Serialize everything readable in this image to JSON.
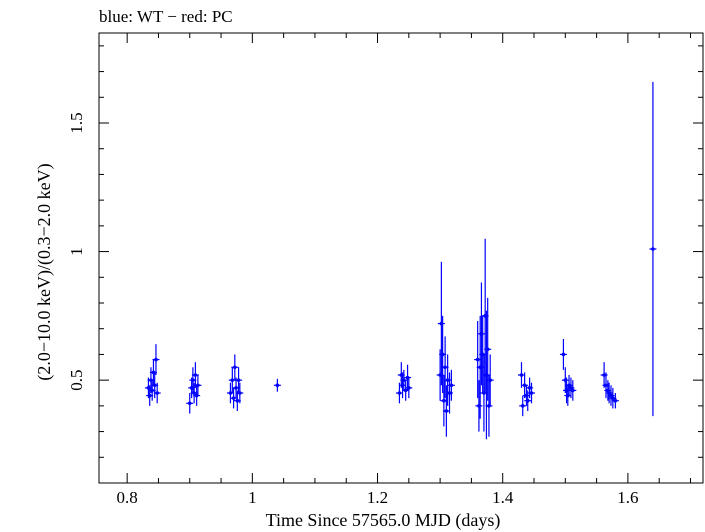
{
  "chart_data": {
    "type": "scatter",
    "title": "blue: WT − red: PC",
    "xlabel": "Time Since 57565.0 MJD (days)",
    "ylabel": "(2.0−10.0 keV)/(0.3−2.0 keV)",
    "xlim": [
      0.755,
      1.72
    ],
    "ylim": [
      0.1,
      1.85
    ],
    "x_ticks": [
      0.8,
      1,
      1.2,
      1.4,
      1.6
    ],
    "x_tick_labels": [
      "0.8",
      "1",
      "1.2",
      "1.4",
      "1.6"
    ],
    "y_ticks": [
      0.5,
      1,
      1.5
    ],
    "y_tick_labels": [
      "0.5",
      "1",
      "1.5"
    ],
    "grid": false,
    "colors": {
      "WT": "#0000ff",
      "PC": "#ff0000"
    },
    "series": [
      {
        "name": "WT",
        "points": [
          {
            "x": 0.834,
            "y": 0.47,
            "err": 0.04
          },
          {
            "x": 0.836,
            "y": 0.44,
            "err": 0.04
          },
          {
            "x": 0.838,
            "y": 0.5,
            "err": 0.05
          },
          {
            "x": 0.84,
            "y": 0.46,
            "err": 0.04
          },
          {
            "x": 0.842,
            "y": 0.53,
            "err": 0.05
          },
          {
            "x": 0.844,
            "y": 0.48,
            "err": 0.05
          },
          {
            "x": 0.846,
            "y": 0.58,
            "err": 0.06
          },
          {
            "x": 0.848,
            "y": 0.45,
            "err": 0.04
          },
          {
            "x": 0.9,
            "y": 0.41,
            "err": 0.04
          },
          {
            "x": 0.903,
            "y": 0.47,
            "err": 0.04
          },
          {
            "x": 0.905,
            "y": 0.5,
            "err": 0.05
          },
          {
            "x": 0.907,
            "y": 0.45,
            "err": 0.04
          },
          {
            "x": 0.909,
            "y": 0.52,
            "err": 0.05
          },
          {
            "x": 0.911,
            "y": 0.44,
            "err": 0.04
          },
          {
            "x": 0.913,
            "y": 0.48,
            "err": 0.04
          },
          {
            "x": 0.965,
            "y": 0.45,
            "err": 0.04
          },
          {
            "x": 0.968,
            "y": 0.5,
            "err": 0.05
          },
          {
            "x": 0.97,
            "y": 0.43,
            "err": 0.04
          },
          {
            "x": 0.972,
            "y": 0.55,
            "err": 0.05
          },
          {
            "x": 0.974,
            "y": 0.47,
            "err": 0.04
          },
          {
            "x": 0.976,
            "y": 0.42,
            "err": 0.04
          },
          {
            "x": 0.978,
            "y": 0.5,
            "err": 0.05
          },
          {
            "x": 0.98,
            "y": 0.45,
            "err": 0.04
          },
          {
            "x": 1.04,
            "y": 0.48,
            "err": 0.025
          },
          {
            "x": 1.235,
            "y": 0.45,
            "err": 0.04
          },
          {
            "x": 1.238,
            "y": 0.52,
            "err": 0.05
          },
          {
            "x": 1.24,
            "y": 0.48,
            "err": 0.05
          },
          {
            "x": 1.242,
            "y": 0.5,
            "err": 0.04
          },
          {
            "x": 1.245,
            "y": 0.46,
            "err": 0.04
          },
          {
            "x": 1.248,
            "y": 0.51,
            "err": 0.05
          },
          {
            "x": 1.25,
            "y": 0.47,
            "err": 0.04
          },
          {
            "x": 1.3,
            "y": 0.52,
            "err": 0.1
          },
          {
            "x": 1.302,
            "y": 0.72,
            "err": 0.24
          },
          {
            "x": 1.304,
            "y": 0.6,
            "err": 0.15
          },
          {
            "x": 1.306,
            "y": 0.42,
            "err": 0.1
          },
          {
            "x": 1.308,
            "y": 0.55,
            "err": 0.12
          },
          {
            "x": 1.31,
            "y": 0.38,
            "err": 0.1
          },
          {
            "x": 1.312,
            "y": 0.5,
            "err": 0.1
          },
          {
            "x": 1.315,
            "y": 0.45,
            "err": 0.08
          },
          {
            "x": 1.318,
            "y": 0.48,
            "err": 0.06
          },
          {
            "x": 1.36,
            "y": 0.58,
            "err": 0.15
          },
          {
            "x": 1.362,
            "y": 0.4,
            "err": 0.1
          },
          {
            "x": 1.364,
            "y": 0.55,
            "err": 0.2
          },
          {
            "x": 1.366,
            "y": 0.68,
            "err": 0.2
          },
          {
            "x": 1.368,
            "y": 0.6,
            "err": 0.15
          },
          {
            "x": 1.37,
            "y": 0.45,
            "err": 0.15
          },
          {
            "x": 1.372,
            "y": 0.75,
            "err": 0.3
          },
          {
            "x": 1.374,
            "y": 0.52,
            "err": 0.25
          },
          {
            "x": 1.376,
            "y": 0.62,
            "err": 0.2
          },
          {
            "x": 1.378,
            "y": 0.4,
            "err": 0.12
          },
          {
            "x": 1.38,
            "y": 0.5,
            "err": 0.1
          },
          {
            "x": 1.43,
            "y": 0.52,
            "err": 0.05
          },
          {
            "x": 1.432,
            "y": 0.4,
            "err": 0.04
          },
          {
            "x": 1.435,
            "y": 0.48,
            "err": 0.05
          },
          {
            "x": 1.438,
            "y": 0.44,
            "err": 0.04
          },
          {
            "x": 1.44,
            "y": 0.42,
            "err": 0.04
          },
          {
            "x": 1.443,
            "y": 0.47,
            "err": 0.04
          },
          {
            "x": 1.446,
            "y": 0.45,
            "err": 0.04
          },
          {
            "x": 1.497,
            "y": 0.6,
            "err": 0.06
          },
          {
            "x": 1.5,
            "y": 0.5,
            "err": 0.05
          },
          {
            "x": 1.502,
            "y": 0.46,
            "err": 0.05
          },
          {
            "x": 1.504,
            "y": 0.44,
            "err": 0.04
          },
          {
            "x": 1.506,
            "y": 0.48,
            "err": 0.04
          },
          {
            "x": 1.509,
            "y": 0.47,
            "err": 0.04
          },
          {
            "x": 1.512,
            "y": 0.46,
            "err": 0.04
          },
          {
            "x": 1.562,
            "y": 0.52,
            "err": 0.05
          },
          {
            "x": 1.565,
            "y": 0.48,
            "err": 0.05
          },
          {
            "x": 1.568,
            "y": 0.46,
            "err": 0.04
          },
          {
            "x": 1.57,
            "y": 0.45,
            "err": 0.04
          },
          {
            "x": 1.573,
            "y": 0.44,
            "err": 0.04
          },
          {
            "x": 1.576,
            "y": 0.43,
            "err": 0.04
          },
          {
            "x": 1.58,
            "y": 0.42,
            "err": 0.03
          },
          {
            "x": 1.64,
            "y": 1.01,
            "err": 0.65
          }
        ]
      }
    ]
  }
}
